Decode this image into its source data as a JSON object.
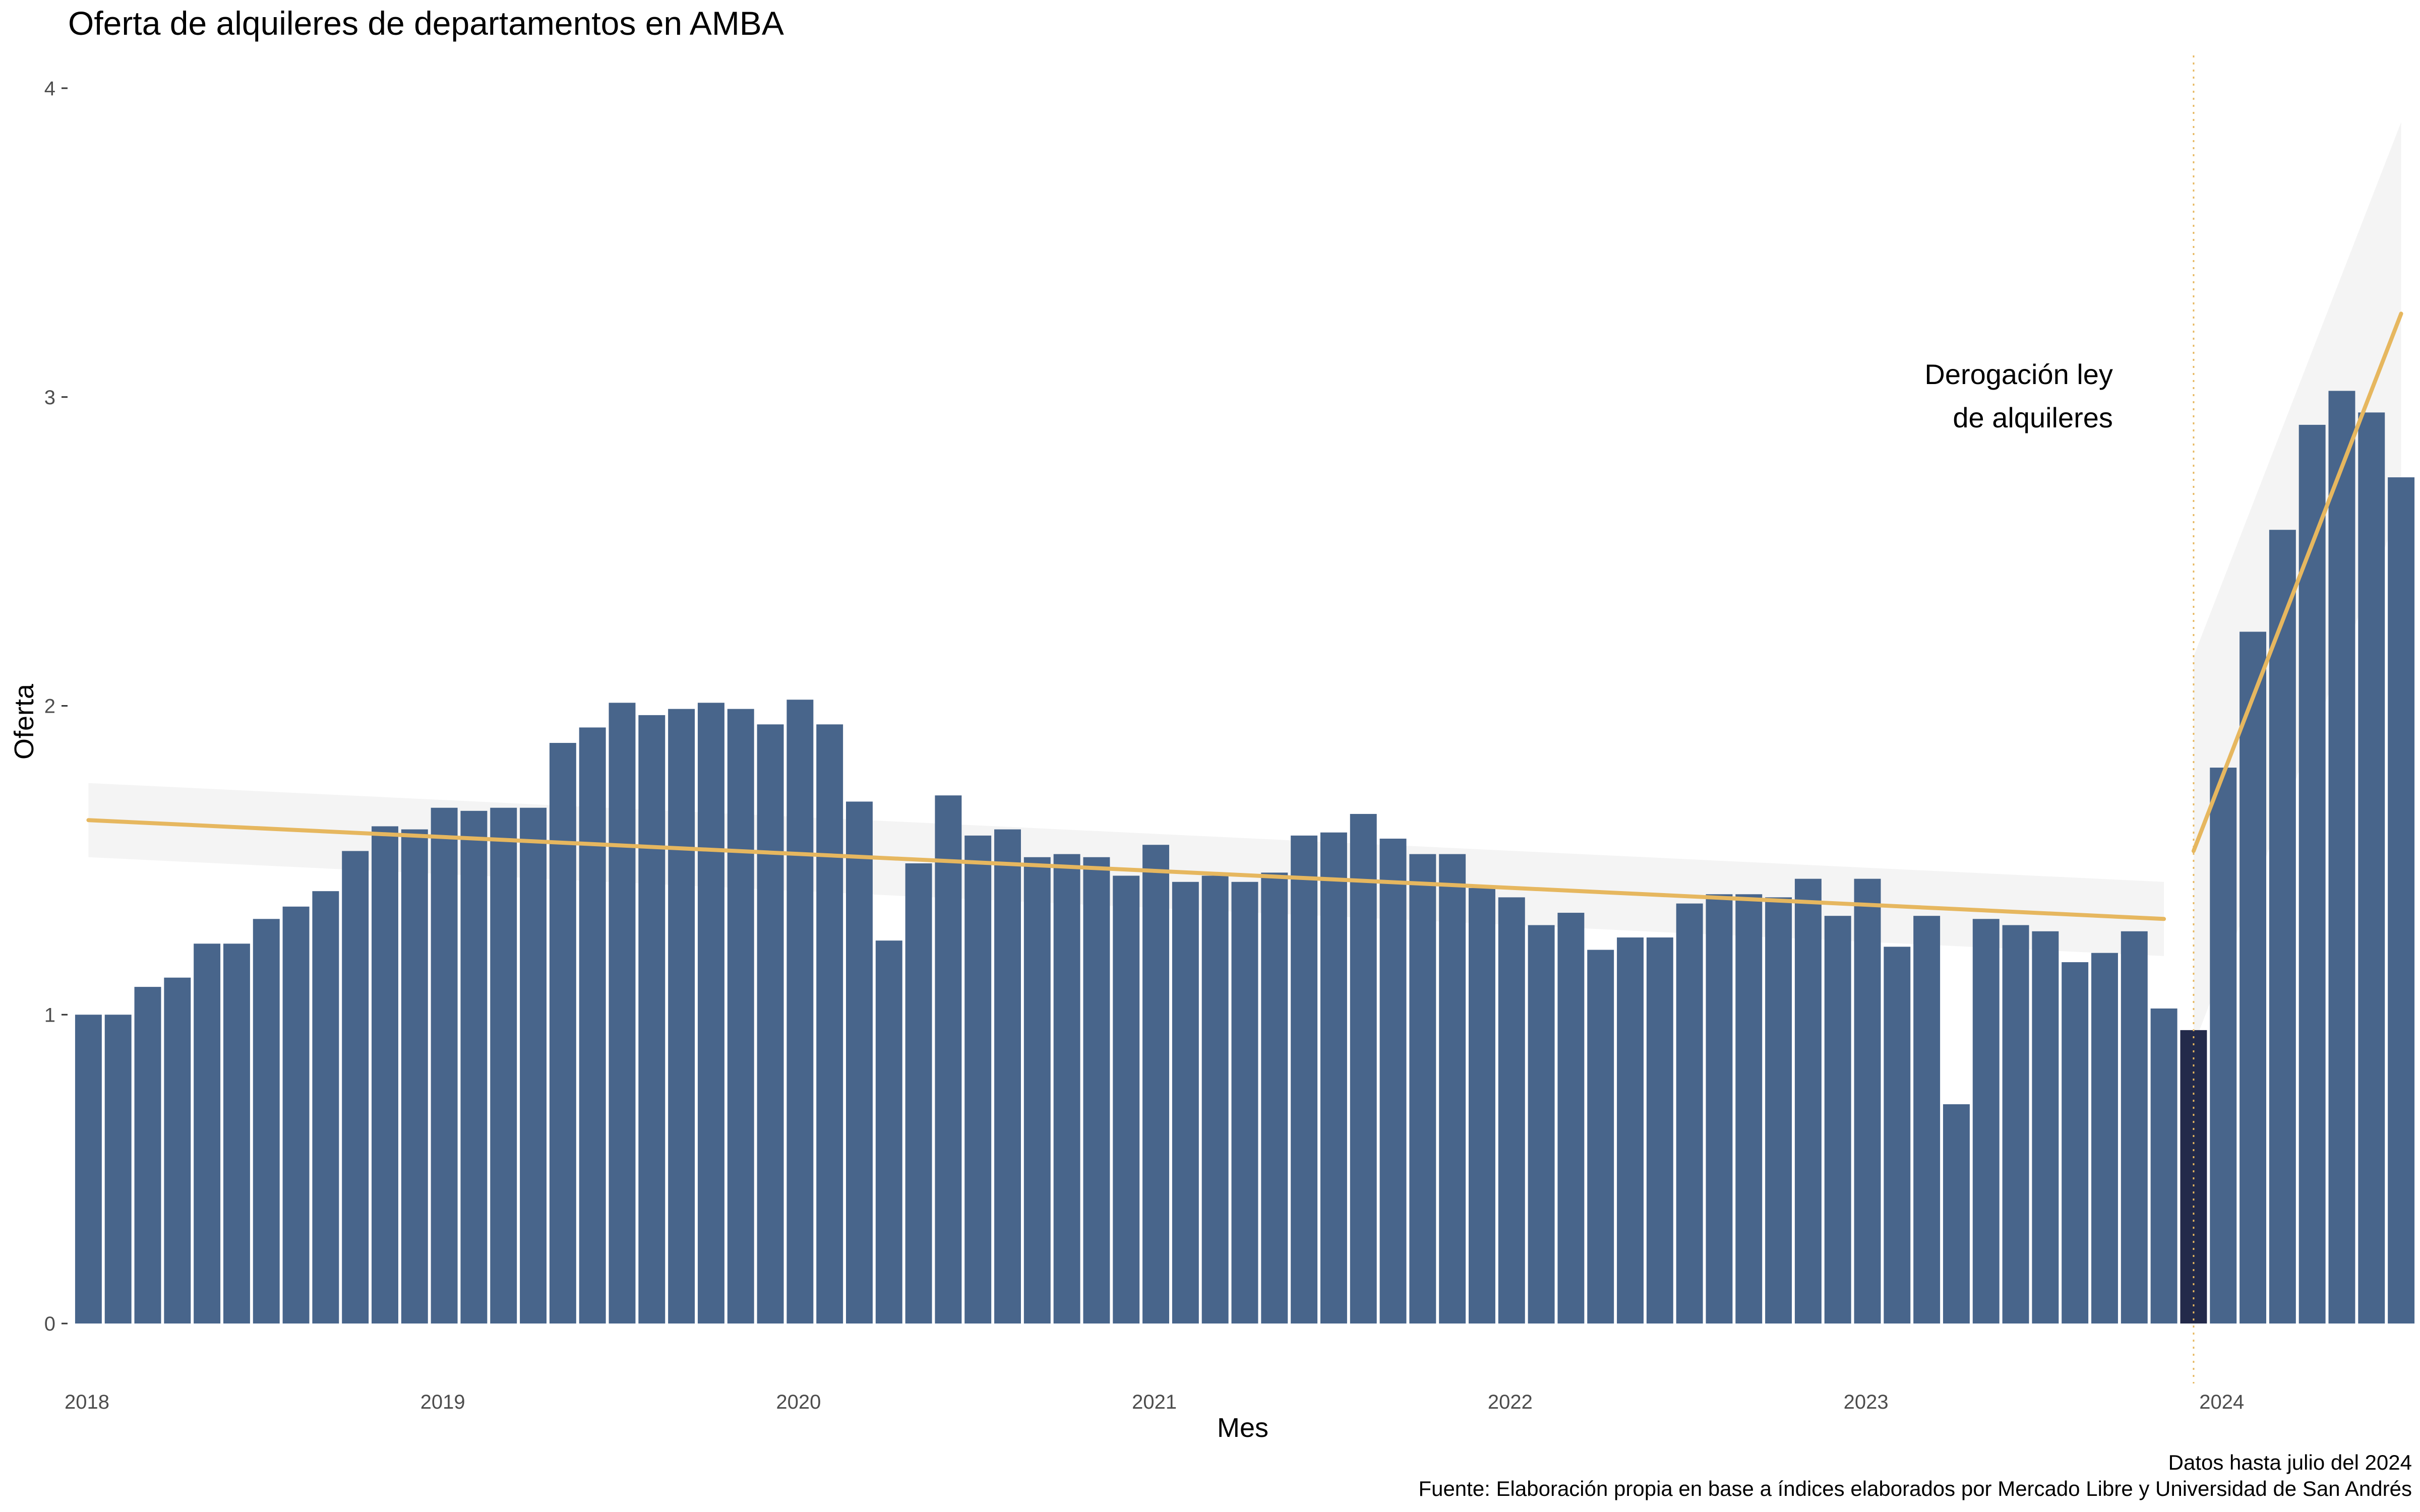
{
  "chart_data": {
    "type": "bar",
    "title": "Oferta de alquileres de departamentos en AMBA",
    "xlabel": "Mes",
    "ylabel": "Oferta",
    "ylim": [
      0,
      4
    ],
    "yticks": [
      0,
      1,
      2,
      3,
      4
    ],
    "xticks": [
      "2018",
      "2019",
      "2020",
      "2021",
      "2022",
      "2023",
      "2024"
    ],
    "x_range": [
      "2018-01",
      "2024-07"
    ],
    "grid": false,
    "legend": "none",
    "colors": {
      "bar": "#48658b",
      "highlight_bar": "#232a4a",
      "trend": "#e6b75f",
      "ribbon": "#ebebeb",
      "event_line": "#e6b75f"
    },
    "highlight_month": "2023-12",
    "event": {
      "month": "2023-12",
      "label_line1": "Derogación ley",
      "label_line2": "de alquileres"
    },
    "series": [
      {
        "x": [
          "2018-01",
          "2018-02",
          "2018-03",
          "2018-04",
          "2018-05",
          "2018-06",
          "2018-07",
          "2018-08",
          "2018-09",
          "2018-10",
          "2018-11",
          "2018-12",
          "2019-01",
          "2019-02",
          "2019-03",
          "2019-04",
          "2019-05",
          "2019-06",
          "2019-07",
          "2019-08",
          "2019-09",
          "2019-10",
          "2019-11",
          "2019-12",
          "2020-01",
          "2020-02",
          "2020-03",
          "2020-04",
          "2020-05",
          "2020-06",
          "2020-07",
          "2020-08",
          "2020-09",
          "2020-10",
          "2020-11",
          "2020-12",
          "2021-01",
          "2021-02",
          "2021-03",
          "2021-04",
          "2021-05",
          "2021-06",
          "2021-07",
          "2021-08",
          "2021-09",
          "2021-10",
          "2021-11",
          "2021-12",
          "2022-01",
          "2022-02",
          "2022-03",
          "2022-04",
          "2022-05",
          "2022-06",
          "2022-07",
          "2022-08",
          "2022-09",
          "2022-10",
          "2022-11",
          "2022-12",
          "2023-01",
          "2023-02",
          "2023-03",
          "2023-04",
          "2023-05",
          "2023-06",
          "2023-07",
          "2023-08",
          "2023-09",
          "2023-10",
          "2023-11",
          "2023-12",
          "2024-01",
          "2024-02",
          "2024-03",
          "2024-04",
          "2024-05",
          "2024-06",
          "2024-07"
        ],
        "values": [
          1.0,
          1.0,
          1.09,
          1.12,
          1.23,
          1.23,
          1.31,
          1.35,
          1.4,
          1.53,
          1.61,
          1.6,
          1.67,
          1.66,
          1.67,
          1.67,
          1.88,
          1.93,
          2.01,
          1.97,
          1.99,
          2.01,
          1.99,
          1.94,
          2.02,
          1.94,
          1.69,
          1.24,
          1.49,
          1.71,
          1.58,
          1.6,
          1.51,
          1.52,
          1.51,
          1.45,
          1.55,
          1.43,
          1.45,
          1.43,
          1.46,
          1.58,
          1.59,
          1.65,
          1.57,
          1.52,
          1.52,
          1.41,
          1.38,
          1.29,
          1.33,
          1.21,
          1.25,
          1.25,
          1.36,
          1.39,
          1.39,
          1.38,
          1.44,
          1.32,
          1.44,
          1.22,
          1.32,
          0.71,
          1.31,
          1.29,
          1.27,
          1.17,
          1.2,
          1.27,
          1.02,
          0.95,
          1.8,
          2.24,
          2.57,
          2.91,
          3.02,
          2.95,
          2.74
        ]
      }
    ],
    "trends": [
      {
        "from": "2018-01",
        "to": "2023-11",
        "y_start": 1.63,
        "y_end": 1.31,
        "ci": 0.12
      },
      {
        "from": "2023-12",
        "to": "2024-07",
        "y_start": 1.53,
        "y_end": 3.27,
        "ci_start": 0.63,
        "ci_end": 0.62
      }
    ]
  },
  "caption": {
    "line1": "Datos hasta julio del 2024",
    "line2": "Fuente: Elaboración propia en base a índices elaborados por Mercado Libre y Universidad de San Andrés"
  }
}
